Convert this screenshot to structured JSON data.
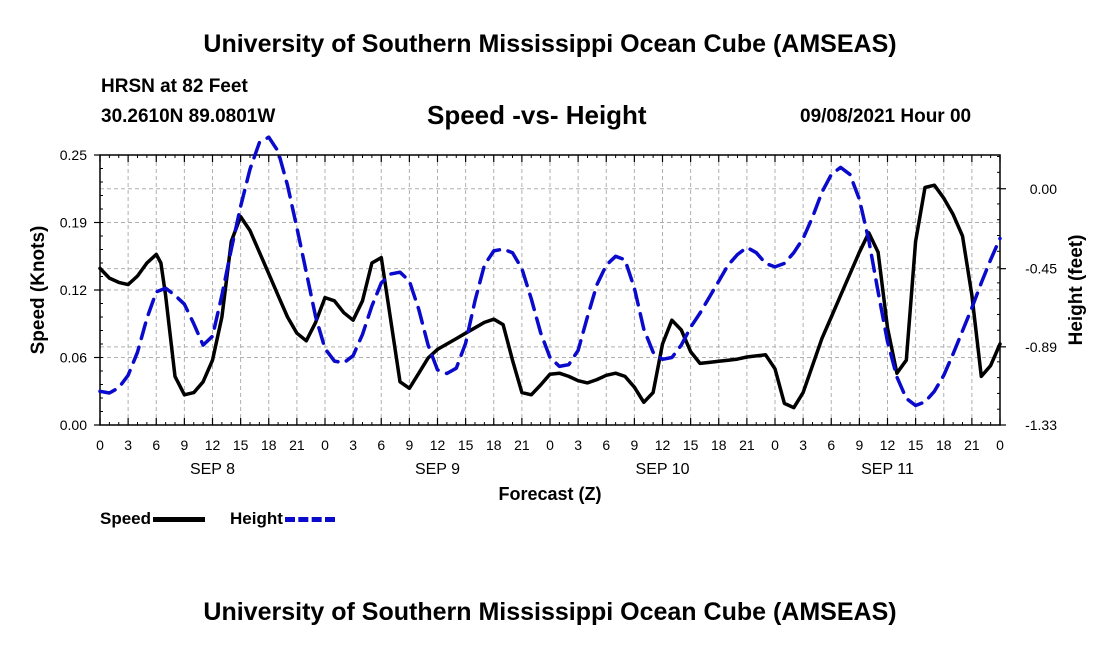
{
  "header": {
    "title": "University of Southern Mississippi Ocean Cube (AMSEAS)",
    "station": "HRSN at 82 Feet",
    "coordinates": "30.2610N  89.0801W",
    "subtitle": "Speed -vs- Height",
    "datetime": "09/08/2021 Hour 00"
  },
  "footer": {
    "title": "University of Southern Mississippi Ocean Cube (AMSEAS)"
  },
  "legend": {
    "speed_label": "Speed",
    "height_label": "Height"
  },
  "colors": {
    "speed": "#000000",
    "height": "#0a0acc",
    "grid": "#b0b0b0"
  },
  "chart_data": {
    "type": "line",
    "xlabel": "Forecast (Z)",
    "ylabel_left": "Speed (Knots)",
    "ylabel_right": "Height (feet)",
    "xlim": [
      0,
      96
    ],
    "ylim_left": [
      0,
      0.25
    ],
    "ylim_right": [
      -1.33,
      0.19
    ],
    "yticks_left": [
      "0.00",
      "0.06",
      "0.12",
      "0.19",
      "0.25"
    ],
    "yticks_left_values": [
      0,
      0.0625,
      0.125,
      0.1875,
      0.25
    ],
    "yticks_right": [
      "0.00",
      "-0.45",
      "-0.89",
      "-1.33"
    ],
    "yticks_right_values": [
      0,
      -0.45,
      -0.89,
      -1.33
    ],
    "xticks": [
      "0",
      "3",
      "6",
      "9",
      "12",
      "15",
      "18",
      "21",
      "0",
      "3",
      "6",
      "9",
      "12",
      "15",
      "18",
      "21",
      "0",
      "3",
      "6",
      "9",
      "12",
      "15",
      "18",
      "21",
      "0",
      "3",
      "6",
      "9",
      "12",
      "15",
      "18",
      "21",
      "0"
    ],
    "day_labels": [
      {
        "label": "SEP 8",
        "hour": 12
      },
      {
        "label": "SEP 9",
        "hour": 36
      },
      {
        "label": "SEP 10",
        "hour": 60
      },
      {
        "label": "SEP 11",
        "hour": 84
      }
    ],
    "grid": true,
    "series": [
      {
        "name": "Speed",
        "axis": "left",
        "style": "solid",
        "x": [
          0,
          1,
          2,
          3,
          4,
          5,
          6,
          6.5,
          7,
          8,
          9,
          10,
          11,
          12,
          13,
          14,
          15,
          16,
          17,
          18,
          19,
          20,
          21,
          22,
          23,
          24,
          25,
          26,
          27,
          28,
          29,
          30,
          31,
          32,
          33,
          34,
          35,
          36,
          37,
          38,
          39,
          40,
          41,
          42,
          43,
          44,
          45,
          46,
          47,
          48,
          49,
          50,
          51,
          52,
          53,
          54,
          55,
          56,
          57,
          58,
          59,
          60,
          61,
          62,
          63,
          64,
          65,
          66,
          67,
          68,
          69,
          70,
          71,
          72,
          73,
          74,
          75,
          76,
          77,
          78,
          79,
          80,
          81,
          82,
          83,
          84,
          85,
          86,
          87,
          88,
          89,
          90,
          91,
          92,
          93,
          94,
          95,
          96
        ],
        "values": [
          0.145,
          0.136,
          0.132,
          0.13,
          0.138,
          0.15,
          0.158,
          0.15,
          0.12,
          0.045,
          0.028,
          0.03,
          0.04,
          0.06,
          0.1,
          0.17,
          0.193,
          0.18,
          0.16,
          0.14,
          0.12,
          0.1,
          0.085,
          0.078,
          0.095,
          0.118,
          0.115,
          0.104,
          0.097,
          0.115,
          0.15,
          0.155,
          0.098,
          0.04,
          0.034,
          0.048,
          0.062,
          0.07,
          0.075,
          0.08,
          0.085,
          0.09,
          0.095,
          0.098,
          0.093,
          0.06,
          0.03,
          0.028,
          0.037,
          0.047,
          0.048,
          0.045,
          0.041,
          0.039,
          0.042,
          0.046,
          0.048,
          0.045,
          0.035,
          0.021,
          0.03,
          0.075,
          0.097,
          0.088,
          0.068,
          0.057,
          0.058,
          0.059,
          0.06,
          0.061,
          0.063,
          0.064,
          0.065,
          0.052,
          0.02,
          0.016,
          0.03,
          0.055,
          0.08,
          0.1,
          0.12,
          0.14,
          0.16,
          0.178,
          0.16,
          0.09,
          0.048,
          0.06,
          0.17,
          0.22,
          0.222,
          0.21,
          0.195,
          0.175,
          0.12,
          0.045,
          0.055,
          0.075
        ]
      },
      {
        "name": "Height",
        "axis": "right",
        "style": "dashed",
        "x": [
          0,
          1,
          2,
          3,
          4,
          5,
          6,
          7,
          8,
          9,
          10,
          11,
          12,
          13,
          14,
          15,
          16,
          17,
          18,
          19,
          20,
          21,
          22,
          23,
          24,
          25,
          26,
          27,
          28,
          29,
          30,
          31,
          32,
          33,
          34,
          35,
          36,
          37,
          38,
          39,
          40,
          41,
          42,
          43,
          44,
          45,
          46,
          47,
          48,
          49,
          50,
          51,
          52,
          53,
          54,
          55,
          56,
          57,
          58,
          59,
          60,
          61,
          62,
          63,
          64,
          65,
          66,
          67,
          68,
          69,
          70,
          71,
          72,
          73,
          74,
          75,
          76,
          77,
          78,
          79,
          80,
          81,
          82,
          83,
          84,
          85,
          86,
          87,
          88,
          89,
          90,
          91,
          92,
          93,
          94,
          95,
          96
        ],
        "values": [
          -1.14,
          -1.15,
          -1.12,
          -1.05,
          -0.92,
          -0.73,
          -0.58,
          -0.56,
          -0.6,
          -0.65,
          -0.76,
          -0.88,
          -0.83,
          -0.6,
          -0.34,
          -0.1,
          0.11,
          0.26,
          0.29,
          0.21,
          0.02,
          -0.22,
          -0.47,
          -0.72,
          -0.9,
          -0.97,
          -0.98,
          -0.94,
          -0.82,
          -0.66,
          -0.53,
          -0.48,
          -0.47,
          -0.52,
          -0.68,
          -0.88,
          -1.02,
          -1.04,
          -1.01,
          -0.87,
          -0.63,
          -0.43,
          -0.35,
          -0.34,
          -0.36,
          -0.45,
          -0.62,
          -0.81,
          -0.95,
          -1.0,
          -0.99,
          -0.91,
          -0.72,
          -0.54,
          -0.43,
          -0.38,
          -0.4,
          -0.56,
          -0.79,
          -0.92,
          -0.96,
          -0.95,
          -0.88,
          -0.78,
          -0.7,
          -0.61,
          -0.52,
          -0.43,
          -0.37,
          -0.33,
          -0.36,
          -0.42,
          -0.44,
          -0.42,
          -0.36,
          -0.28,
          -0.16,
          -0.02,
          0.08,
          0.12,
          0.08,
          -0.06,
          -0.29,
          -0.58,
          -0.86,
          -1.06,
          -1.18,
          -1.22,
          -1.2,
          -1.14,
          -1.05,
          -0.93,
          -0.8,
          -0.67,
          -0.53,
          -0.4,
          -0.28
        ]
      }
    ]
  }
}
